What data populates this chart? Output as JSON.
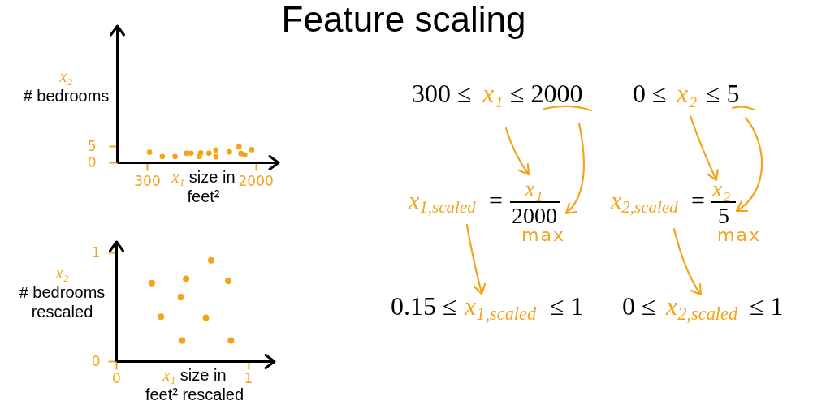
{
  "chart_data": [
    {
      "type": "scatter",
      "xlabel": "x₁ size in\nfeet²",
      "ylabel": "x₂\n# bedrooms",
      "x": [
        340,
        540,
        740,
        920,
        990,
        1140,
        1120,
        1270,
        1380,
        1380,
        1590,
        1740,
        1770,
        1830,
        1940
      ],
      "values": [
        3.1,
        1.8,
        1.8,
        2.8,
        2.8,
        2.9,
        1.8,
        2.8,
        3.8,
        1.7,
        3.2,
        4.8,
        2.7,
        2.3,
        3.9
      ],
      "color": "#f5a31a",
      "marker": "circle",
      "xlim": [
        -170,
        2360
      ],
      "ylim": [
        0,
        42
      ],
      "xticks": [
        300,
        2000
      ],
      "yticks": [
        0,
        5
      ]
    },
    {
      "type": "scatter",
      "xlabel": "x₁ size in\nfeet² rescaled",
      "ylabel": "x₂\n# bedrooms\nrescaled",
      "x": [
        0.27,
        0.53,
        0.72,
        0.85,
        0.49,
        0.34,
        0.68,
        0.5,
        0.87
      ],
      "values": [
        0.72,
        0.76,
        0.93,
        0.74,
        0.59,
        0.41,
        0.4,
        0.19,
        0.19
      ],
      "color": "#f5a31a",
      "marker": "circle",
      "xlim": [
        0,
        1.2
      ],
      "ylim": [
        0,
        1.1
      ],
      "xticks": [
        0,
        1
      ],
      "yticks": [
        0,
        1
      ]
    },
    {
      "type": "other",
      "title": "Feature scaling",
      "annotations": [
        "300 ≤",
        "x₁",
        "≤ 2000",
        "0 ≤",
        "x₂",
        "≤ 5",
        "x$_{1,scaled}$",
        "=",
        "x₁",
        "2000",
        "max",
        "x$_{2,scaled}$",
        "=",
        "x₂",
        "5",
        "max",
        "0.15 ≤",
        "x$_{1,scaled}$",
        "≤ 1",
        "0 ≤",
        "x$_{2,scaled}$",
        "≤ 1"
      ]
    }
  ]
}
